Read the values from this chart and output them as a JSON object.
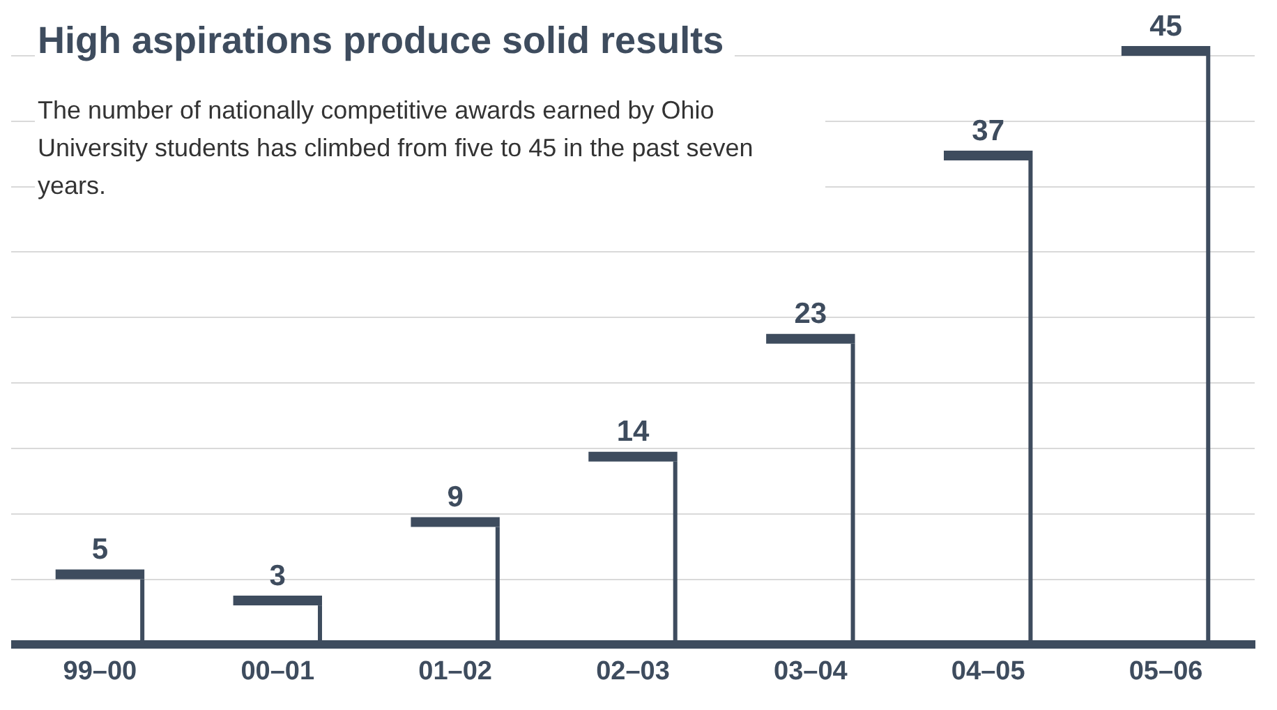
{
  "chart_data": {
    "type": "bar",
    "title": "High aspirations produce solid results",
    "subtitle": "The number of nationally competitive awards earned by Ohio University students has climbed from five to 45 in the past seven years.",
    "categories": [
      "99–00",
      "00–01",
      "01–02",
      "02–03",
      "03–04",
      "04–05",
      "05–06"
    ],
    "values": [
      5,
      3,
      9,
      14,
      23,
      37,
      45
    ],
    "color": "#3e4c5e",
    "ylim": [
      0,
      45
    ],
    "grid": "y",
    "tick_labels": "x",
    "data_labels": true
  }
}
